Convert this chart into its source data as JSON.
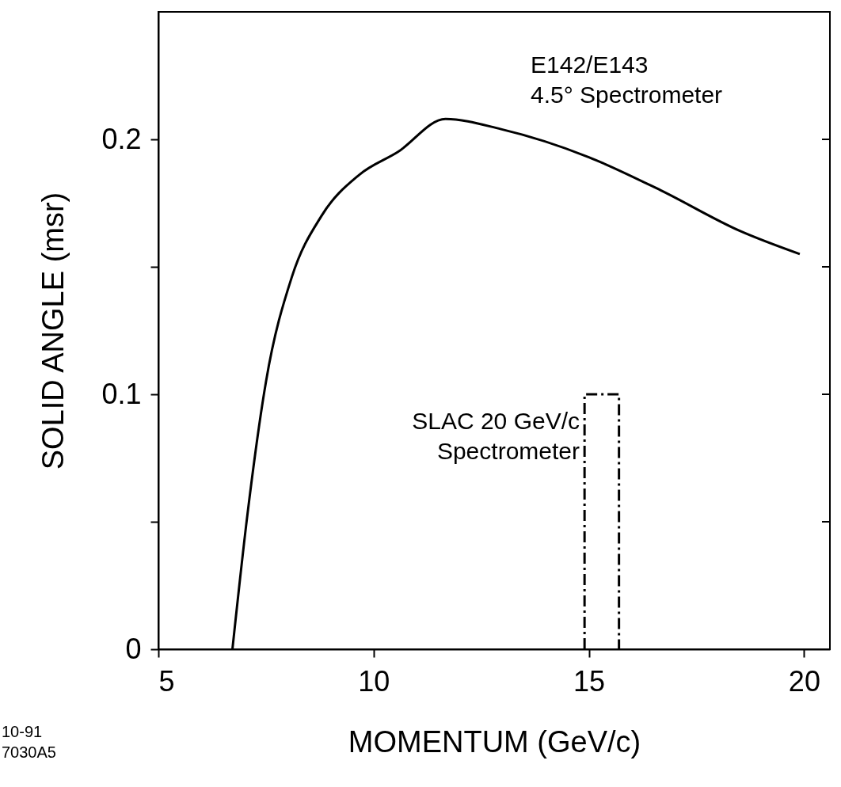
{
  "chart_data": {
    "type": "line",
    "xlabel": "MOMENTUM     (GeV/c)",
    "ylabel": "SOLID ANGLE     (msr)",
    "xlim": [
      5,
      20.6
    ],
    "ylim": [
      0,
      0.25
    ],
    "xticks": [
      5,
      10,
      15,
      20
    ],
    "yticks": [
      0,
      {
        "value": 0.05,
        "label": null
      },
      0.1,
      {
        "value": 0.15,
        "label": null
      },
      0.2
    ],
    "grid": false,
    "series": [
      {
        "name": "E142/E143\n4.5° Spectrometer",
        "color": "#000000",
        "line_style": "solid",
        "x": [
          6.72,
          7.07,
          7.5,
          8.1,
          8.79,
          9.66,
          10.56,
          11.67,
          12.96,
          15,
          16.67,
          18.52,
          19.9
        ],
        "values": [
          0,
          0.053,
          0.105,
          0.146,
          0.17,
          0.186,
          0.195,
          0.208,
          0.204,
          0.193,
          0.18,
          0.164,
          0.155
        ]
      },
      {
        "name": "SLAC 20 GeV/c\nSpectrometer",
        "color": "#000000",
        "line_style": "dashed",
        "x": [
          14.9,
          14.9,
          15.7,
          15.7
        ],
        "values": [
          0,
          0.1,
          0.1,
          0
        ]
      }
    ],
    "annotations": [
      "10-91\n7030A5"
    ]
  }
}
